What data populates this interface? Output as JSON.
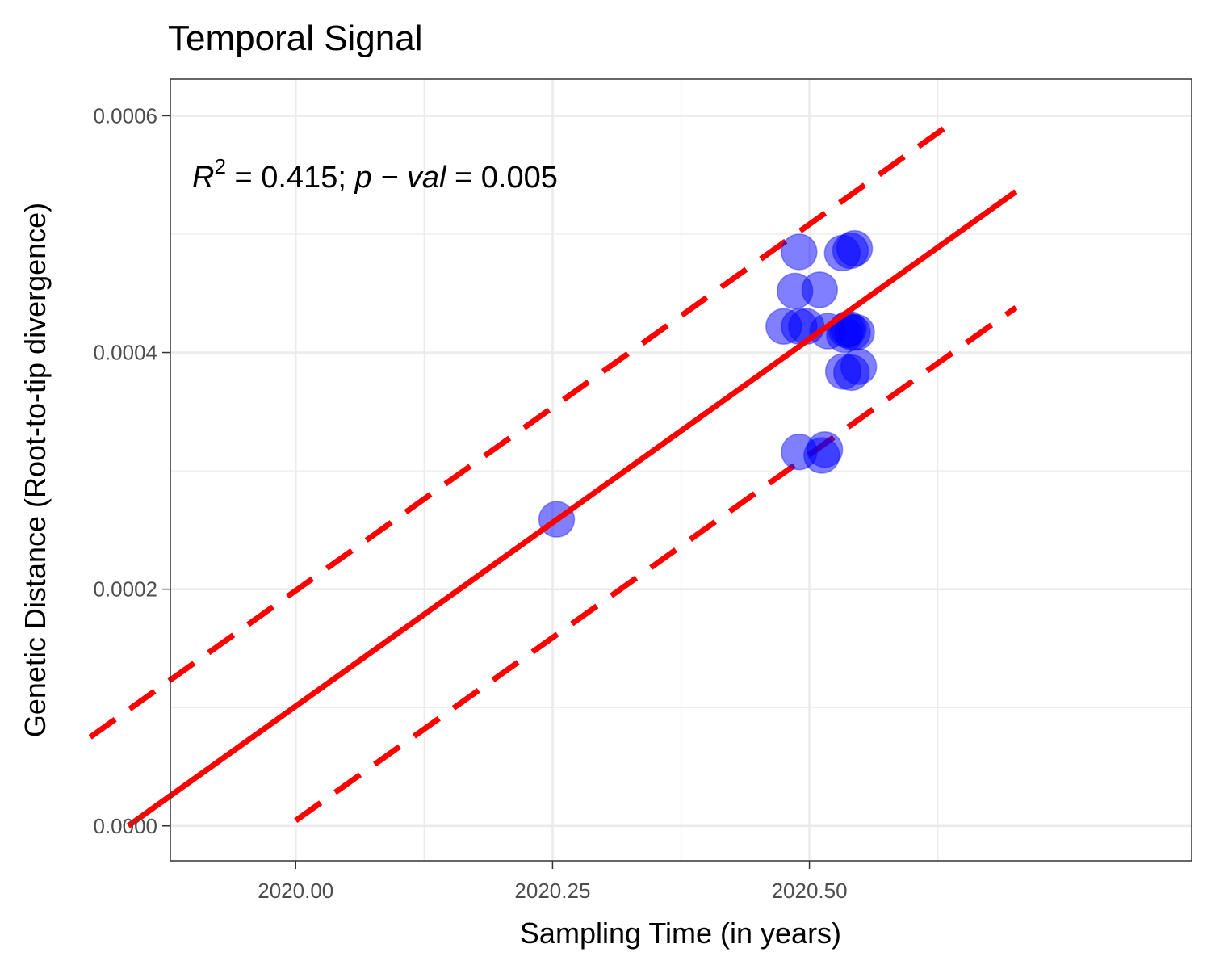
{
  "chart_data": {
    "type": "scatter",
    "title": "Temporal Signal",
    "xlabel": "Sampling Time (in years)",
    "ylabel": "Genetic Distance (Root-to-tip divergence)",
    "xlim": [
      2019.878,
      2020.872
    ],
    "ylim": [
      -2.95e-05,
      0.000631
    ],
    "x_ticks": [
      {
        "value": 2020.0,
        "label": "2020.00"
      },
      {
        "value": 2020.25,
        "label": "2020.25"
      },
      {
        "value": 2020.5,
        "label": "2020.50"
      }
    ],
    "y_ticks": [
      {
        "value": 0.0,
        "label": "0.0000"
      },
      {
        "value": 0.0002,
        "label": "0.0002"
      },
      {
        "value": 0.0004,
        "label": "0.0004"
      },
      {
        "value": 0.0006,
        "label": "0.0006"
      }
    ],
    "grid": true,
    "annotation": {
      "r_symbol": "R",
      "r_exponent": "2",
      "r_text": " = 0.415; ",
      "p_symbol": "p − val",
      "p_text": " = 0.005"
    },
    "points": {
      "color": "#0000ff",
      "opacity": 0.5,
      "x": [
        2020.254,
        2020.49,
        2020.486,
        2020.497,
        2020.49,
        2020.51,
        2020.475,
        2020.49,
        2020.512,
        2020.515,
        2020.518,
        2020.534,
        2020.538,
        2020.536,
        2020.542,
        2020.546,
        2020.532,
        2020.54,
        2020.544,
        2020.533,
        2020.548,
        2020.541
      ],
      "y": [
        0.000259,
        0.000485,
        0.000452,
        0.000422,
        0.000422,
        0.000453,
        0.000422,
        0.000316,
        0.000313,
        0.000318,
        0.000418,
        0.000415,
        0.00042,
        0.000419,
        0.000417,
        0.000417,
        0.000484,
        0.000486,
        0.000488,
        0.000384,
        0.000388,
        0.000383
      ]
    },
    "fit_line": {
      "color": "#ff0000",
      "style": "solid",
      "x": [
        2019.837,
        2020.701
      ],
      "y": [
        0.0,
        0.000536
      ]
    },
    "upper_band": {
      "color": "#ff0000",
      "style": "dashed",
      "x": [
        2019.8,
        2020.64
      ],
      "y": [
        7.5e-05,
        0.000595
      ]
    },
    "lower_band": {
      "color": "#ff0000",
      "style": "dashed",
      "x": [
        2020.0,
        2020.701
      ],
      "y": [
        4.5e-06,
        0.000438
      ]
    }
  }
}
